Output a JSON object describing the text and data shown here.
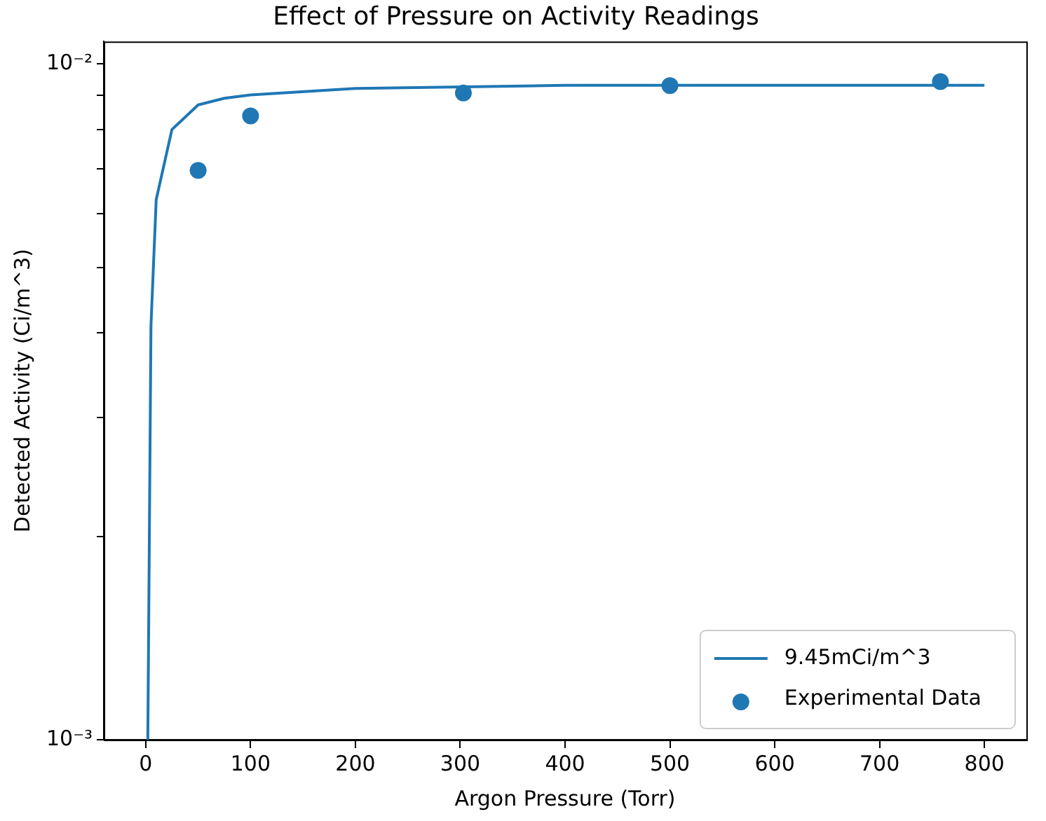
{
  "chart_data": {
    "type": "line",
    "title": "Effect of Pressure on Activity Readings",
    "xlabel": "Argon Pressure (Torr)",
    "ylabel": "Detected Activity (Ci/m^3)",
    "log": "y",
    "grid": false,
    "legend": "bottom right",
    "xlim": [
      -40,
      840
    ],
    "xticks": [
      0,
      100,
      200,
      300,
      400,
      500,
      600,
      700,
      800
    ],
    "ylim": [
      0.001,
      0.0108
    ],
    "yticks": [
      {
        "value": 0.001,
        "label": "10⁻³"
      },
      {
        "value": 0.002,
        "label": null
      },
      {
        "value": 0.003,
        "label": null
      },
      {
        "value": 0.004,
        "label": null
      },
      {
        "value": 0.005,
        "label": null
      },
      {
        "value": 0.006,
        "label": null
      },
      {
        "value": 0.007,
        "label": null
      },
      {
        "value": 0.008,
        "label": null
      },
      {
        "value": 0.009,
        "label": null
      },
      {
        "value": 0.01,
        "label": "10⁻²"
      }
    ],
    "series": [
      {
        "name": "9.45mCi/m^3",
        "type": "line",
        "color": "#1f77b4",
        "marker": "none",
        "line_style": "solid",
        "x": [
          2,
          5,
          10,
          25,
          50,
          75,
          100,
          200,
          400,
          800
        ],
        "values": [
          0.001,
          0.0041,
          0.0063,
          0.008,
          0.0087,
          0.0089,
          0.009,
          0.0092,
          0.0093,
          0.0093
        ]
      },
      {
        "name": "Experimental Data",
        "type": "scatter",
        "color": "#1f77b4",
        "marker": "circle",
        "x": [
          50,
          100,
          303,
          500,
          758
        ],
        "values": [
          0.00696,
          0.00838,
          0.00906,
          0.00929,
          0.00942
        ]
      }
    ]
  }
}
